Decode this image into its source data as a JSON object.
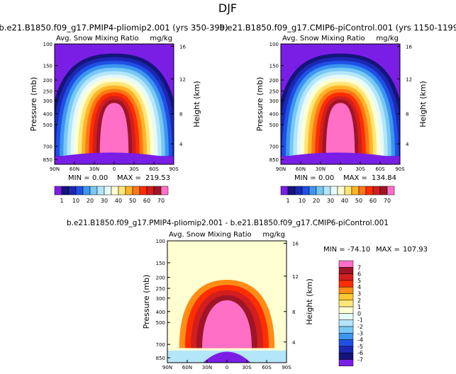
{
  "season": "DJF",
  "colors": {
    "bg": "#7a1ee6",
    "pink": "#ff6fc6",
    "palette": [
      "#7a1ee6",
      "#14147a",
      "#1c28b4",
      "#1e50e6",
      "#3c96f0",
      "#78c8f5",
      "#b4e6fa",
      "#e6fafa",
      "#ffffd2",
      "#ffe678",
      "#ffb428",
      "#ff7814",
      "#ff2d00",
      "#d21e1e",
      "#a01428",
      "#ff6fc6"
    ],
    "diff_palette": [
      "#7a1ee6",
      "#14147a",
      "#1c28b4",
      "#1e50e6",
      "#3c96f0",
      "#78c8f5",
      "#b4e6fa",
      "#e6fafa",
      "#ffffd2",
      "#ffe678",
      "#ffc832",
      "#ff8c14",
      "#ff2d00",
      "#d21e1e",
      "#a01428",
      "#ff6fc6"
    ],
    "diff_bg": "#ffffd2"
  },
  "chart_data": [
    {
      "type": "heatmap",
      "title": "b.e21.B1850.f09_g17.PMIP4-pliomip2.001 (yrs 350-399)",
      "subtitle_left": "Avg. Snow Mixing Ratio",
      "subtitle_right": "mg/kg",
      "ylabel": "Pressure (mb)",
      "ylabel_right": "Height (km)",
      "x_ticks": [
        "90N",
        "60N",
        "30N",
        "0",
        "30S",
        "60S",
        "90S"
      ],
      "y_ticks": [
        "100",
        "150",
        "200",
        "250",
        "300",
        "400",
        "500",
        "700",
        "850"
      ],
      "y_ticks_right": [
        "16",
        "12",
        "8",
        "4"
      ],
      "min_label": "MIN =",
      "min": "0.00",
      "max_label": "MAX =",
      "max": "219.53",
      "colorbar_labels": [
        "1",
        "10",
        "20",
        "30",
        "40",
        "50",
        "60",
        "70"
      ]
    },
    {
      "type": "heatmap",
      "title": "b.e21.B1850.f09_g17.CMIP6-piControl.001 (yrs 1150-1199)",
      "subtitle_left": "Avg. Snow Mixing Ratio",
      "subtitle_right": "mg/kg",
      "ylabel": "Pressure (mb)",
      "ylabel_right": "Height (km)",
      "x_ticks": [
        "90N",
        "60N",
        "30N",
        "0",
        "30S",
        "60S",
        "90S"
      ],
      "y_ticks": [
        "100",
        "150",
        "200",
        "250",
        "300",
        "400",
        "500",
        "700",
        "850"
      ],
      "y_ticks_right": [
        "16",
        "12",
        "8",
        "4"
      ],
      "min_label": "MIN =",
      "min": "0.00",
      "max_label": "MAX =",
      "max": "134.84",
      "colorbar_labels": [
        "1",
        "10",
        "20",
        "30",
        "40",
        "50",
        "60",
        "70"
      ]
    },
    {
      "type": "heatmap",
      "title": "b.e21.B1850.f09_g17.PMIP4-pliomip2.001 - b.e21.B1850.f09_g17.CMIP6-piControl.001",
      "subtitle_left": "Avg. Snow Mixing Ratio",
      "subtitle_right": "mg/kg",
      "ylabel": "Pressure (mb)",
      "ylabel_right": "Height (km)",
      "x_ticks": [
        "90N",
        "60N",
        "30N",
        "0",
        "30S",
        "60S",
        "90S"
      ],
      "y_ticks": [
        "100",
        "150",
        "200",
        "250",
        "300",
        "400",
        "500",
        "700",
        "850"
      ],
      "y_ticks_right": [
        "16",
        "12",
        "8",
        "4"
      ],
      "min_label": "MIN =",
      "min": "-74.10",
      "max_label": "MAX =",
      "max": "107.93",
      "colorbar_labels": [
        "7",
        "6",
        "5",
        "4",
        "3",
        "2",
        "1",
        "0",
        "-1",
        "-2",
        "-3",
        "-4",
        "-5",
        "-6",
        "-7"
      ]
    }
  ]
}
